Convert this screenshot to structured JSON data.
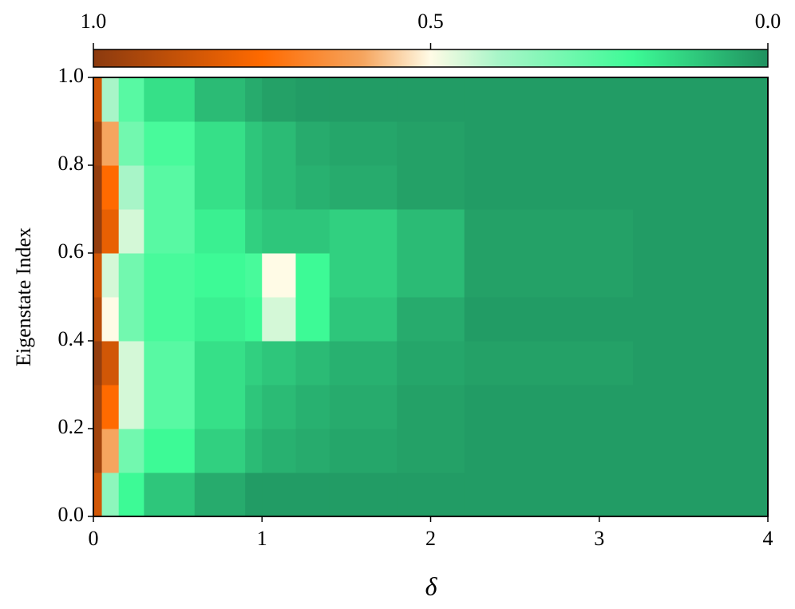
{
  "chart_data": {
    "type": "heatmap",
    "x_label": "δ",
    "y_label": "Eigenstate Index",
    "xlim": [
      0,
      4
    ],
    "ylim": [
      0,
      1
    ],
    "xticks": [
      0,
      1,
      2,
      3,
      4
    ],
    "yticks": [
      {
        "value": 0,
        "label": "0.0"
      },
      0.2,
      0.4,
      0.6,
      0.8,
      {
        "value": 1,
        "label": "1.0"
      }
    ],
    "x_edges": [
      0,
      0.05,
      0.15,
      0.3,
      0.6,
      0.9,
      1.0,
      1.2,
      1.4,
      1.8,
      2.2,
      3.2,
      4
    ],
    "y_edges": [
      0,
      0.1,
      0.2,
      0.3,
      0.4,
      0.5,
      0.6,
      0.7,
      0.8,
      0.9,
      1.0
    ],
    "z": [
      [
        0.85,
        0.35,
        0.2,
        0.1,
        0.05,
        0.02,
        0.02,
        0.02,
        0.02,
        0.02,
        0.02,
        0.02
      ],
      [
        0.95,
        0.6,
        0.3,
        0.2,
        0.12,
        0.08,
        0.06,
        0.05,
        0.04,
        0.03,
        0.02,
        0.02
      ],
      [
        0.95,
        0.75,
        0.45,
        0.25,
        0.15,
        0.1,
        0.08,
        0.06,
        0.05,
        0.03,
        0.02,
        0.02
      ],
      [
        0.98,
        0.85,
        0.45,
        0.25,
        0.15,
        0.12,
        0.1,
        0.08,
        0.06,
        0.04,
        0.03,
        0.02
      ],
      [
        0.9,
        0.5,
        0.3,
        0.22,
        0.18,
        0.2,
        0.45,
        0.2,
        0.1,
        0.05,
        0.02,
        0.02
      ],
      [
        0.85,
        0.45,
        0.3,
        0.22,
        0.2,
        0.22,
        0.5,
        0.2,
        0.12,
        0.08,
        0.03,
        0.02
      ],
      [
        0.98,
        0.8,
        0.45,
        0.25,
        0.18,
        0.12,
        0.1,
        0.1,
        0.12,
        0.08,
        0.03,
        0.02
      ],
      [
        0.98,
        0.75,
        0.4,
        0.25,
        0.15,
        0.1,
        0.08,
        0.06,
        0.05,
        0.03,
        0.02,
        0.02
      ],
      [
        0.95,
        0.6,
        0.3,
        0.22,
        0.15,
        0.1,
        0.08,
        0.05,
        0.04,
        0.03,
        0.02,
        0.02
      ],
      [
        0.85,
        0.4,
        0.25,
        0.15,
        0.08,
        0.05,
        0.03,
        0.02,
        0.02,
        0.02,
        0.02,
        0.02
      ]
    ],
    "colormap": [
      {
        "value": 0,
        "color": "#1f915f"
      },
      {
        "value": 0.2,
        "color": "#3dfa96"
      },
      {
        "value": 0.4,
        "color": "#a8f5c8"
      },
      {
        "value": 0.5,
        "color": "#fffbe6"
      },
      {
        "value": 0.6,
        "color": "#f5a55f"
      },
      {
        "value": 0.75,
        "color": "#ff6a00"
      },
      {
        "value": 1,
        "color": "#8b3a0f"
      }
    ],
    "colorbar": {
      "lim": [
        1,
        0
      ],
      "ticks": [
        {
          "value": 1,
          "label": "1.0"
        },
        0.5,
        {
          "value": 0,
          "label": "0.0"
        }
      ]
    }
  }
}
